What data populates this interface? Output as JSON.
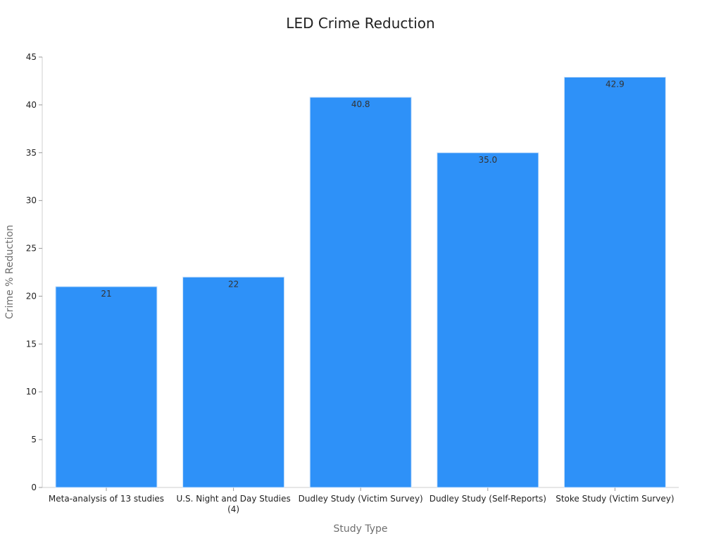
{
  "chart_data": {
    "type": "bar",
    "title": "LED Crime Reduction",
    "xlabel": "Study Type",
    "ylabel": "Crime % Reduction",
    "categories": [
      "Meta-analysis of 13 studies",
      "U.S. Night and Day Studies (4)",
      "Dudley Study (Victim Survey)",
      "Dudley Study (Self-Reports)",
      "Stoke Study (Victim Survey)"
    ],
    "values": [
      21,
      22,
      40.8,
      35.0,
      42.9
    ],
    "data_labels": [
      "21",
      "22",
      "40.8",
      "35.0",
      "42.9"
    ],
    "ylim": [
      0,
      45
    ],
    "yticks": [
      0,
      5,
      10,
      15,
      20,
      25,
      30,
      35,
      40,
      45
    ],
    "grid": false,
    "legend": "none",
    "bar_color": "#2e91f8"
  }
}
